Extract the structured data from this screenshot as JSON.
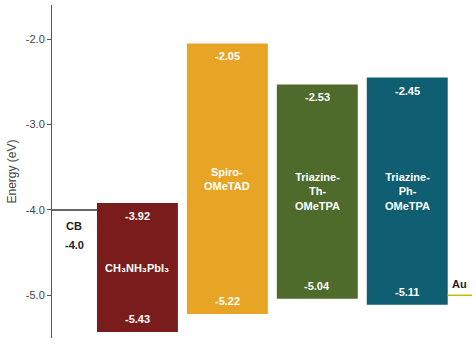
{
  "chart_data": {
    "type": "bar",
    "y_label": "Energy (eV)",
    "categories": [
      "CH₃NH₃PbI₃",
      "Spiro-OMeTAD",
      "Triazine-Th-OMeTPA",
      "Triazine-Ph-OMeTPA"
    ],
    "lumo": [
      -3.92,
      -2.05,
      -2.53,
      -2.45
    ],
    "homo": [
      -5.43,
      -5.22,
      -5.04,
      -5.11
    ],
    "colors": [
      "#7a1c1c",
      "#e8a425",
      "#4e6b2c",
      "#0f5e72"
    ],
    "levels": [
      {
        "name": "CB",
        "value": -4.0,
        "value_label": "-4.0",
        "color": "#333333"
      },
      {
        "name": "Au",
        "value": -5.0,
        "color": "#c9b600"
      }
    ],
    "ylim": [
      -5.5,
      -1.6
    ],
    "yticks": [
      {
        "value": -2,
        "label": "-2.0"
      },
      {
        "value": -3,
        "label": "-3.0"
      },
      {
        "value": -4,
        "label": "-4.0"
      },
      {
        "value": -5,
        "label": "-5.0"
      }
    ],
    "data_labels": true,
    "tick_labels": "y",
    "grid": false
  }
}
